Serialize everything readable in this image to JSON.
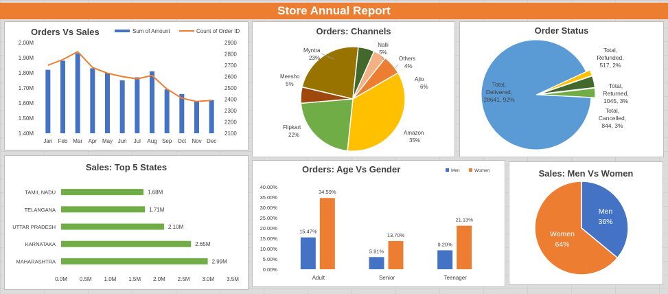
{
  "header": {
    "title": "Store Annual Report"
  },
  "colors": {
    "blue": "#4472c4",
    "orange": "#ed7d31",
    "green": "#70ad47",
    "gold": "#ffc000",
    "brown": "#9e480e",
    "olive": "#997300",
    "darkgreen": "#43682b",
    "lightorange": "#f4b183",
    "lightblue": "#5b9bd5"
  },
  "chart_data": [
    {
      "id": "orders_vs_sales",
      "type": "bar+line",
      "title": "Orders Vs Sales",
      "categories": [
        "Jan",
        "Feb",
        "Mar",
        "Apr",
        "May",
        "Jun",
        "Jul",
        "Aug",
        "Sep",
        "Oct",
        "Nov",
        "Dec"
      ],
      "series": [
        {
          "name": "Sum of Amount",
          "type": "bar",
          "axis": "left",
          "values": [
            1.82,
            1.88,
            1.93,
            1.83,
            1.8,
            1.75,
            1.77,
            1.81,
            1.69,
            1.66,
            1.61,
            1.62
          ]
        },
        {
          "name": "Count of Order ID",
          "type": "line",
          "axis": "right",
          "values": [
            2700,
            2750,
            2820,
            2680,
            2630,
            2600,
            2580,
            2610,
            2490,
            2410,
            2380,
            2390
          ]
        }
      ],
      "yleft": {
        "ylim": [
          1.4,
          2.0
        ],
        "ticks": [
          "1.40M",
          "1.50M",
          "1.60M",
          "1.70M",
          "1.80M",
          "1.90M",
          "2.00M"
        ]
      },
      "yright": {
        "ylim": [
          2100,
          2900
        ],
        "ticks": [
          "2100",
          "2200",
          "2300",
          "2400",
          "2500",
          "2600",
          "2700",
          "2800",
          "2900"
        ]
      }
    },
    {
      "id": "orders_channels",
      "type": "pie",
      "title": "Orders: Channels",
      "slices": [
        {
          "name": "Amazon",
          "value": 35,
          "label": "35%"
        },
        {
          "name": "Flipkart",
          "value": 22,
          "label": "22%"
        },
        {
          "name": "Meesho",
          "value": 5,
          "label": "5%"
        },
        {
          "name": "Myntra",
          "value": 23,
          "label": "23%"
        },
        {
          "name": "Nalli",
          "value": 5,
          "label": "5%"
        },
        {
          "name": "Others",
          "value": 4,
          "label": "4%"
        },
        {
          "name": "Ajio",
          "value": 6,
          "label": "6%"
        }
      ]
    },
    {
      "id": "order_status",
      "type": "pie",
      "title": "Order Status",
      "slices": [
        {
          "name": "Total, Delivered",
          "value": 28641,
          "pct": "92%",
          "lines": [
            "Total,",
            "Delivered,",
            "28641, 92%"
          ]
        },
        {
          "name": "Total, Refunded",
          "value": 517,
          "pct": "2%",
          "lines": [
            "Total,",
            "Refunded,",
            "517, 2%"
          ]
        },
        {
          "name": "Total, Returned",
          "value": 1045,
          "pct": "3%",
          "lines": [
            "Total,",
            "Returned,",
            "1045, 3%"
          ]
        },
        {
          "name": "Total, Cancelled",
          "value": 844,
          "pct": "3%",
          "lines": [
            "Total,",
            "Cancelled,",
            "844, 3%"
          ]
        }
      ]
    },
    {
      "id": "top5_states",
      "type": "bar",
      "orientation": "horizontal",
      "title": "Sales: Top 5 States",
      "categories": [
        "TAMIL NADU",
        "TELANGANA",
        "UTTAR PRADESH",
        "KARNATAKA",
        "MAHARASHTRA"
      ],
      "values": [
        1.68,
        1.71,
        2.1,
        2.65,
        2.99
      ],
      "value_labels": [
        "1.68M",
        "1.71M",
        "2.10M",
        "2.65M",
        "2.99M"
      ],
      "xlim": [
        0,
        3.5
      ],
      "xticks": [
        "0.0M",
        "0.5M",
        "1.0M",
        "1.5M",
        "2.0M",
        "2.5M",
        "3.0M",
        "3.5M"
      ]
    },
    {
      "id": "age_vs_gender",
      "type": "bar",
      "title": "Orders: Age Vs Gender",
      "categories": [
        "Adult",
        "Senior",
        "Teenager"
      ],
      "series": [
        {
          "name": "Men",
          "values": [
            15.47,
            5.91,
            9.2
          ],
          "labels": [
            "15.47%",
            "5.91%",
            "9.20%"
          ]
        },
        {
          "name": "Women",
          "values": [
            34.59,
            13.7,
            21.13
          ],
          "labels": [
            "34.59%",
            "13.70%",
            "21.13%"
          ]
        }
      ],
      "ylim": [
        0,
        40
      ],
      "yticks": [
        "0.00%",
        "5.00%",
        "10.00%",
        "15.00%",
        "20.00%",
        "25.00%",
        "30.00%",
        "35.00%",
        "40.00%"
      ]
    },
    {
      "id": "men_vs_women",
      "type": "pie",
      "title": "Sales: Men Vs Women",
      "slices": [
        {
          "name": "Men",
          "value": 36,
          "label": "36%"
        },
        {
          "name": "Women",
          "value": 64,
          "label": "64%"
        }
      ]
    }
  ]
}
